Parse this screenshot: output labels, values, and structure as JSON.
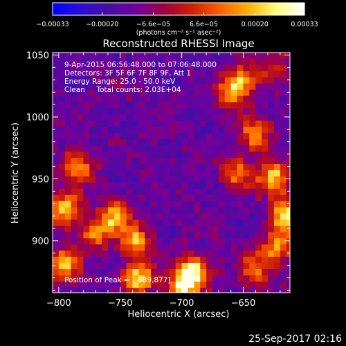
{
  "chart_data": {
    "type": "heatmap",
    "title": "Reconstructed RHESSI Image",
    "xlabel": "Heliocentric X (arcsec)",
    "ylabel": "Heliocentric Y (arcsec)",
    "xlim": [
      -805,
      -612
    ],
    "ylim": [
      858,
      1052
    ],
    "x_ticks": [
      -800,
      -750,
      -700,
      -650
    ],
    "y_ticks": [
      900,
      950,
      1000,
      1050
    ],
    "x_tick_labels": [
      "−800",
      "−750",
      "−700",
      "−650"
    ],
    "y_tick_labels": [
      "900",
      "950",
      "1000",
      "1050"
    ],
    "colorbar": {
      "range": [
        -0.00033,
        0.00033
      ],
      "ticks": [
        -0.00033,
        -0.0002,
        -6.6e-05,
        6.6e-05,
        0.0002,
        0.00033
      ],
      "tick_labels": [
        "−0.00033",
        "−0.00020",
        "−6.6e−05",
        "6.6e−05",
        "0.00020",
        "0.00033"
      ],
      "unit_label": "(photons cm⁻² s⁻¹ asec⁻²)",
      "colormap": [
        "#0000ff",
        "#2a0fd0",
        "#4a0da0",
        "#7000a0",
        "#a00040",
        "#d02000",
        "#ff6000",
        "#ffb000",
        "#ffff80",
        "#ffffff"
      ]
    },
    "grid": false,
    "heatmap_description_bright_regions": [
      {
        "x": -795,
        "y": 880,
        "level": 0.8
      },
      {
        "x": -795,
        "y": 925,
        "level": 0.85
      },
      {
        "x": -785,
        "y": 960,
        "level": 0.75
      },
      {
        "x": -770,
        "y": 905,
        "level": 0.7
      },
      {
        "x": -755,
        "y": 920,
        "level": 0.75
      },
      {
        "x": -738,
        "y": 900,
        "level": 0.8
      },
      {
        "x": -735,
        "y": 870,
        "level": 0.85
      },
      {
        "x": -690,
        "y": 875,
        "level": 0.95
      },
      {
        "x": -700,
        "y": 862,
        "level": 0.85
      },
      {
        "x": -660,
        "y": 1020,
        "level": 0.75
      },
      {
        "x": -648,
        "y": 1030,
        "level": 0.7
      },
      {
        "x": -640,
        "y": 985,
        "level": 0.75
      },
      {
        "x": -655,
        "y": 955,
        "level": 0.7
      },
      {
        "x": -625,
        "y": 950,
        "level": 0.85
      },
      {
        "x": -615,
        "y": 920,
        "level": 0.9
      },
      {
        "x": -622,
        "y": 895,
        "level": 0.75
      },
      {
        "x": -640,
        "y": 875,
        "level": 0.7
      },
      {
        "x": -625,
        "y": 1040,
        "level": 0.55
      }
    ]
  },
  "info": {
    "time_range": "9-Apr-2015 06:56:48.000 to 07:06:48.000",
    "detectors": "Detectors: 3F 5F 6F 7F 8F 9F, Att 1",
    "energy": "Energy Range: 25.0 - 50.0 keV",
    "method": "Clean     Total counts: 2.03E+04",
    "peak": "Position of Peak = [-689,877]"
  },
  "footer": {
    "date": "25-Sep-2017 02:16"
  }
}
